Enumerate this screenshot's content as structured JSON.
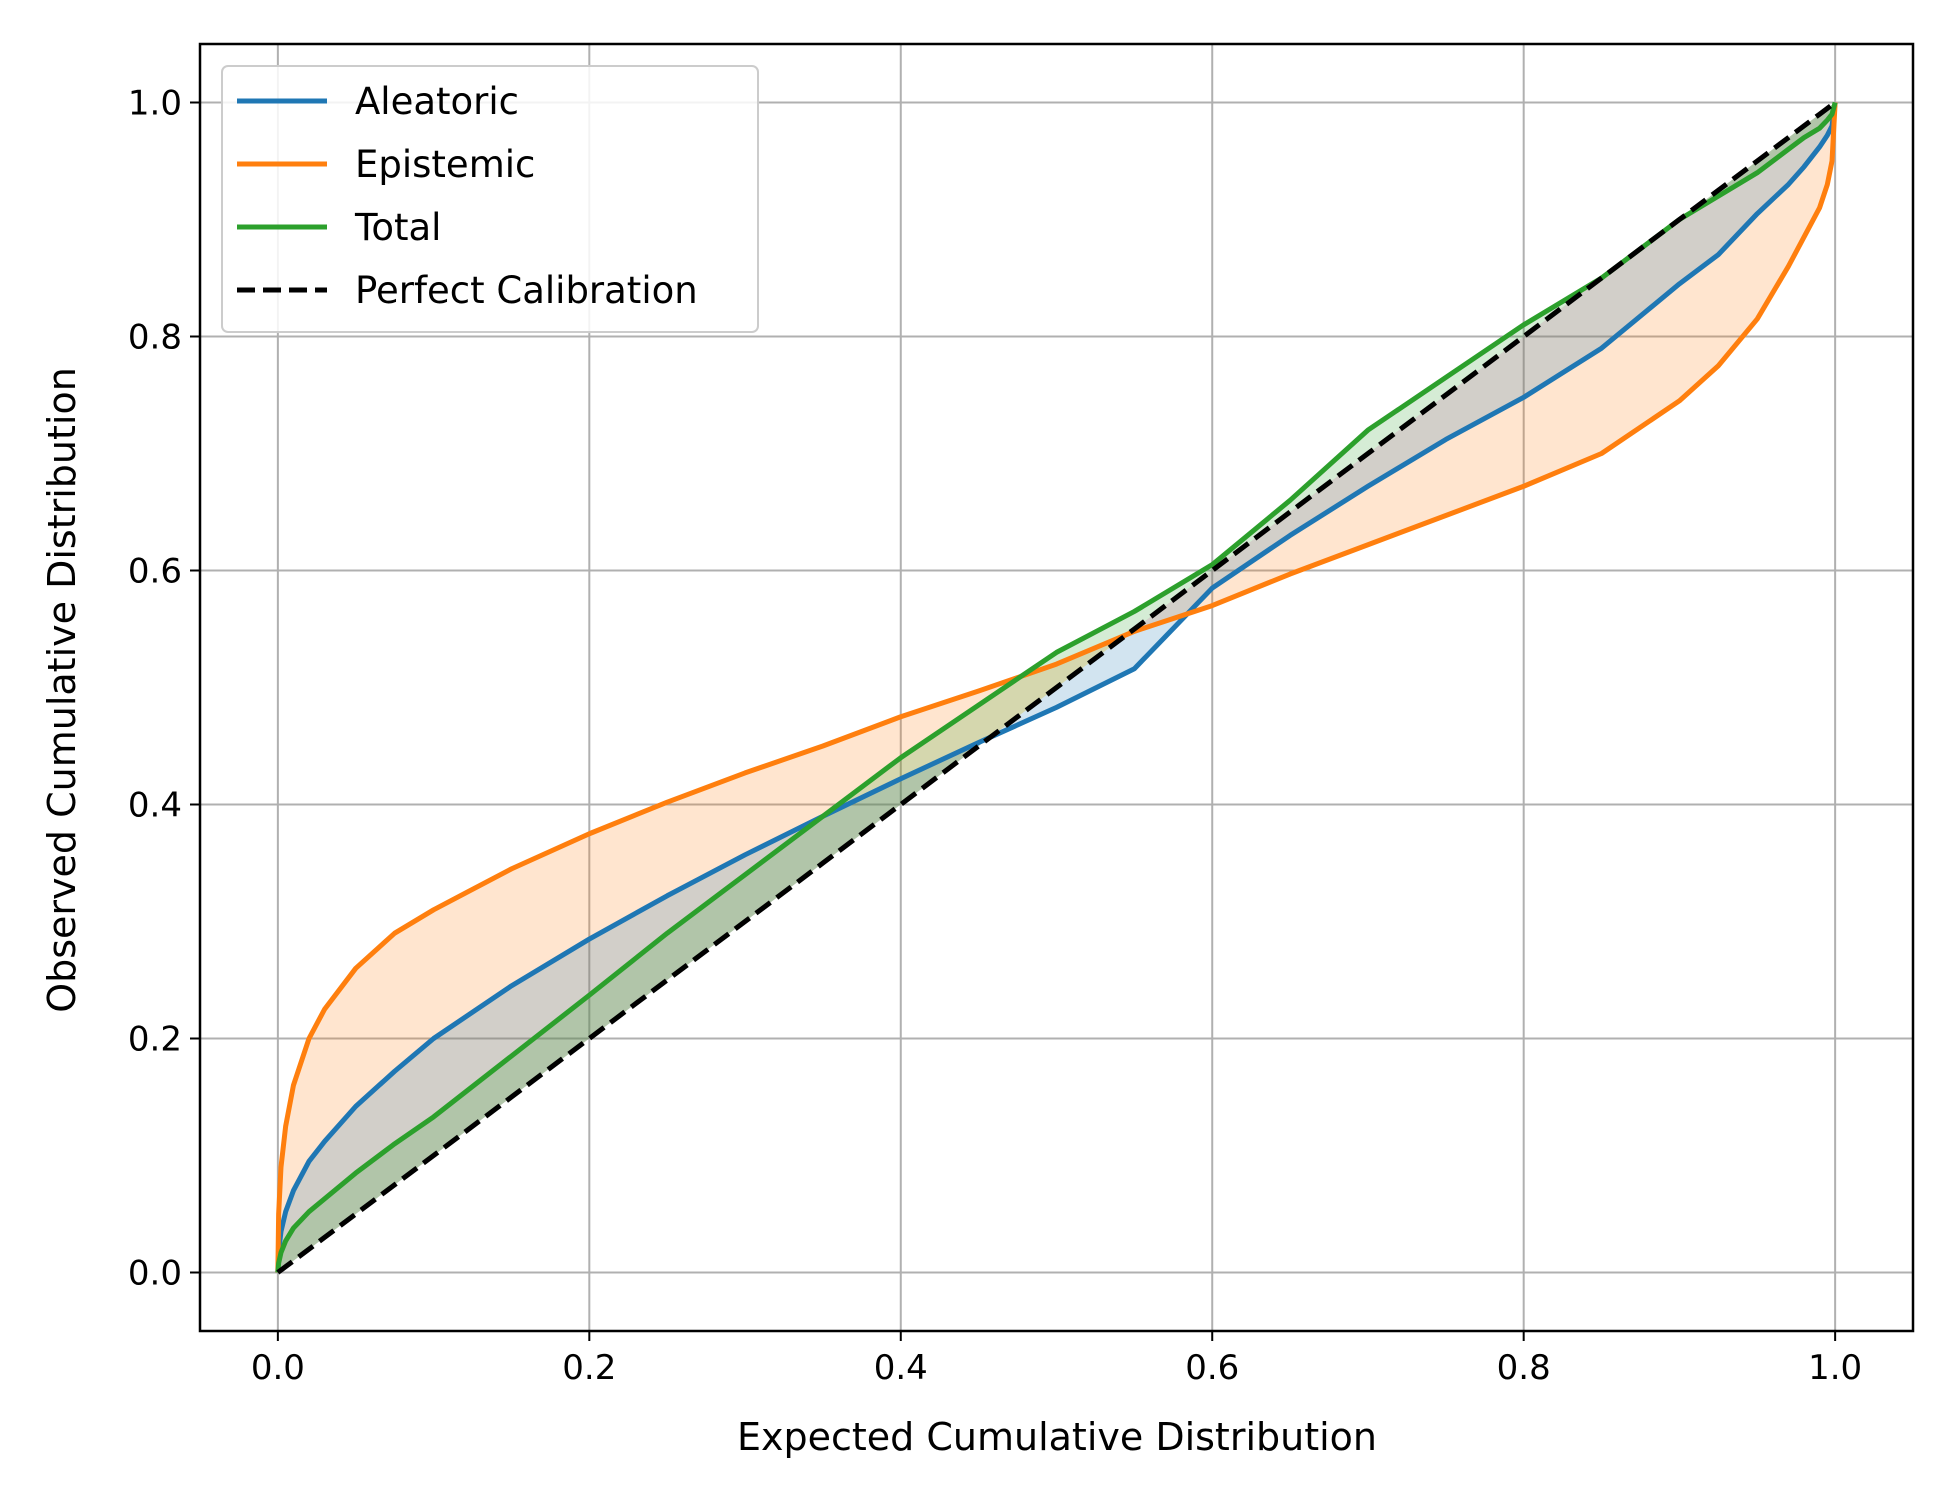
{
  "chart_data": {
    "type": "line",
    "xlabel": "Expected Cumulative Distribution",
    "ylabel": "Observed Cumulative Distribution",
    "xlim": [
      -0.05,
      1.05
    ],
    "ylim": [
      -0.05,
      1.05
    ],
    "xticks": [
      "0.0",
      "0.2",
      "0.4",
      "0.6",
      "0.8",
      "1.0"
    ],
    "yticks": [
      "0.0",
      "0.2",
      "0.4",
      "0.6",
      "0.8",
      "1.0"
    ],
    "grid": true,
    "legend_position": "top-left",
    "x": [
      0,
      0.0005,
      0.002,
      0.005,
      0.01,
      0.02,
      0.03,
      0.05,
      0.075,
      0.1,
      0.15,
      0.2,
      0.25,
      0.3,
      0.35,
      0.4,
      0.45,
      0.5,
      0.55,
      0.6,
      0.65,
      0.7,
      0.75,
      0.8,
      0.85,
      0.9,
      0.925,
      0.95,
      0.97,
      0.98,
      0.99,
      0.995,
      0.998,
      1.0
    ],
    "series": [
      {
        "name": "Aleatoric",
        "color": "#1f77b4",
        "values": [
          0,
          0.018,
          0.035,
          0.052,
          0.07,
          0.095,
          0.112,
          0.142,
          0.172,
          0.2,
          0.245,
          0.285,
          0.322,
          0.357,
          0.39,
          0.422,
          0.453,
          0.483,
          0.516,
          0.585,
          0.63,
          0.672,
          0.712,
          0.748,
          0.79,
          0.845,
          0.87,
          0.905,
          0.93,
          0.945,
          0.962,
          0.972,
          0.98,
          1.0
        ]
      },
      {
        "name": "Epistemic",
        "color": "#ff7f0e",
        "values": [
          0,
          0.05,
          0.09,
          0.125,
          0.16,
          0.2,
          0.225,
          0.26,
          0.29,
          0.31,
          0.345,
          0.375,
          0.402,
          0.427,
          0.45,
          0.475,
          0.497,
          0.52,
          0.548,
          0.57,
          0.597,
          0.622,
          0.647,
          0.672,
          0.7,
          0.745,
          0.775,
          0.815,
          0.86,
          0.885,
          0.91,
          0.93,
          0.95,
          1.0
        ]
      },
      {
        "name": "Total",
        "color": "#2ca02c",
        "values": [
          0,
          0.008,
          0.017,
          0.027,
          0.038,
          0.052,
          0.063,
          0.085,
          0.11,
          0.133,
          0.185,
          0.237,
          0.29,
          0.34,
          0.39,
          0.44,
          0.485,
          0.53,
          0.565,
          0.605,
          0.66,
          0.72,
          0.765,
          0.81,
          0.85,
          0.9,
          0.92,
          0.94,
          0.96,
          0.97,
          0.978,
          0.985,
          0.99,
          1.0
        ]
      },
      {
        "name": "Perfect Calibration",
        "color": "#000000",
        "dashed": true,
        "values": [
          0,
          0.0005,
          0.002,
          0.005,
          0.01,
          0.02,
          0.03,
          0.05,
          0.075,
          0.1,
          0.15,
          0.2,
          0.25,
          0.3,
          0.35,
          0.4,
          0.45,
          0.5,
          0.55,
          0.6,
          0.65,
          0.7,
          0.75,
          0.8,
          0.85,
          0.9,
          0.925,
          0.95,
          0.97,
          0.98,
          0.99,
          0.995,
          0.998,
          1.0
        ]
      }
    ],
    "fills": [
      {
        "series": "Epistemic",
        "between": "Perfect Calibration",
        "color": "#ff7f0e",
        "opacity": 0.2
      },
      {
        "series": "Aleatoric",
        "between": "Perfect Calibration",
        "color": "#1f77b4",
        "opacity": 0.2
      },
      {
        "series": "Total",
        "between": "Perfect Calibration",
        "color": "#2ca02c",
        "opacity": 0.2
      }
    ]
  }
}
